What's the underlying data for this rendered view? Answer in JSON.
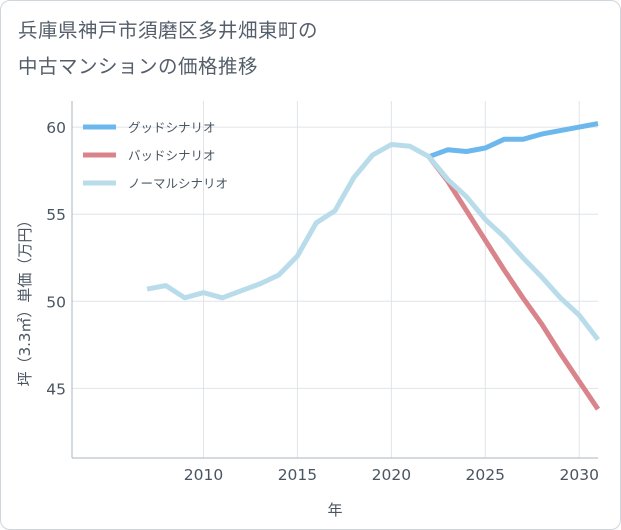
{
  "title": {
    "line1": "兵庫県神戸市須磨区多井畑東町の",
    "line2": "中古マンションの価格推移"
  },
  "chart_data": {
    "type": "line",
    "title": "兵庫県神戸市須磨区多井畑東町の中古マンションの価格推移",
    "xlabel": "年",
    "ylabel": "坪（3.3㎡）単価（万円）",
    "xlim": [
      2003,
      2031
    ],
    "ylim": [
      41,
      61.5
    ],
    "xticks": [
      2010,
      2015,
      2020,
      2025,
      2030
    ],
    "yticks": [
      45,
      50,
      55,
      60
    ],
    "grid": true,
    "legend_position": "top-left",
    "series": [
      {
        "name": "グッドシナリオ",
        "color": "#6cb8ec",
        "x": [
          2022,
          2023,
          2024,
          2025,
          2026,
          2027,
          2028,
          2029,
          2030,
          2031
        ],
        "y": [
          58.3,
          58.7,
          58.6,
          58.8,
          59.3,
          59.3,
          59.6,
          59.8,
          60.0,
          60.2
        ]
      },
      {
        "name": "バッドシナリオ",
        "color": "#d9848b",
        "x": [
          2022,
          2023,
          2024,
          2025,
          2026,
          2027,
          2028,
          2029,
          2030,
          2031
        ],
        "y": [
          58.3,
          56.9,
          55.2,
          53.5,
          51.8,
          50.2,
          48.7,
          47.0,
          45.4,
          43.8
        ]
      },
      {
        "name": "ノーマルシナリオ",
        "color": "#b9dcea",
        "x": [
          2007,
          2008,
          2009,
          2010,
          2011,
          2012,
          2013,
          2014,
          2015,
          2016,
          2017,
          2018,
          2019,
          2020,
          2021,
          2022,
          2023,
          2024,
          2025,
          2026,
          2027,
          2028,
          2029,
          2030,
          2031
        ],
        "y": [
          50.7,
          50.9,
          50.2,
          50.5,
          50.2,
          50.6,
          51.0,
          51.5,
          52.6,
          54.5,
          55.2,
          57.1,
          58.4,
          59.0,
          58.9,
          58.3,
          57.0,
          56.0,
          54.7,
          53.7,
          52.5,
          51.4,
          50.2,
          49.2,
          47.8
        ]
      }
    ]
  }
}
